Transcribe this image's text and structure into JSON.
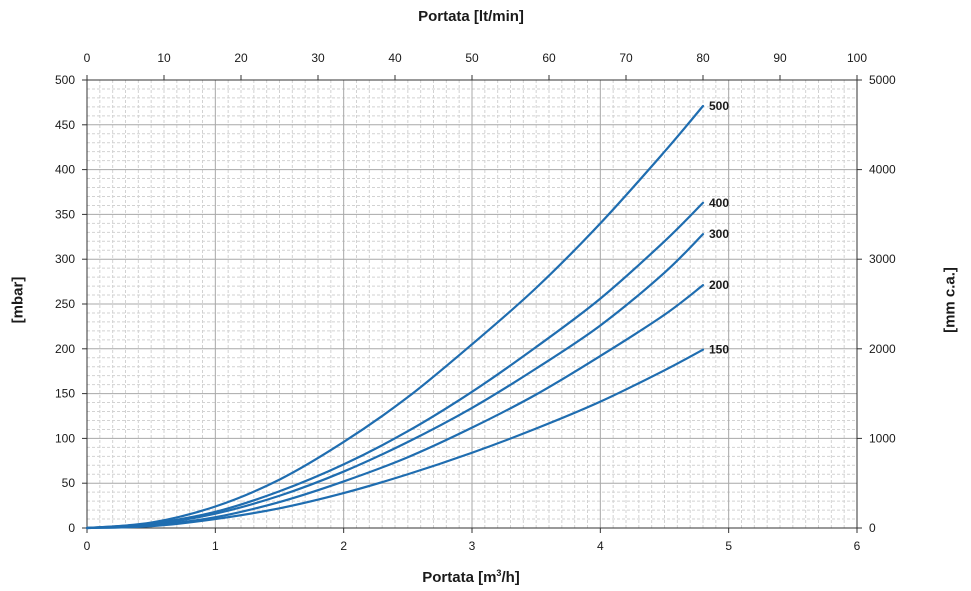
{
  "chart_data": {
    "type": "line",
    "title_top": "Portata [lt/min]",
    "xlabel": "Portata [m³/h]",
    "xlabel_parts": {
      "pre": "Portata [m",
      "sup": "3",
      "post": "/h]"
    },
    "ylabel": "[mbar]",
    "y2label": "[mm c.a.]",
    "xlim": [
      0,
      6
    ],
    "x2lim": [
      0,
      100
    ],
    "ylim": [
      0,
      500
    ],
    "y2lim": [
      0,
      5000
    ],
    "x_ticks": [
      "0",
      "1",
      "2",
      "3",
      "4",
      "5",
      "6"
    ],
    "x2_ticks": [
      "0",
      "10",
      "20",
      "30",
      "40",
      "50",
      "60",
      "70",
      "80",
      "90",
      "100"
    ],
    "y_ticks": [
      "0",
      "50",
      "100",
      "150",
      "200",
      "250",
      "300",
      "350",
      "400",
      "450",
      "500"
    ],
    "y2_ticks": [
      "0",
      "1000",
      "2000",
      "3000",
      "4000",
      "5000"
    ],
    "grid": true,
    "line_color": "#1f6db0",
    "series": [
      {
        "name": "500",
        "x": [
          0,
          0.5,
          1,
          1.5,
          2,
          2.5,
          3,
          3.5,
          4,
          4.5,
          4.8
        ],
        "y": [
          0,
          6,
          24,
          54,
          96,
          146,
          205,
          268,
          340,
          420,
          471
        ]
      },
      {
        "name": "400",
        "x": [
          0,
          0.5,
          1,
          1.5,
          2,
          2.5,
          3,
          3.5,
          4,
          4.5,
          4.8
        ],
        "y": [
          0,
          5,
          18,
          41,
          71,
          108,
          152,
          202,
          256,
          320,
          363
        ]
      },
      {
        "name": "300",
        "x": [
          0,
          0.5,
          1,
          1.5,
          2,
          2.5,
          3,
          3.5,
          4,
          4.5,
          4.8
        ],
        "y": [
          0,
          4,
          16,
          36,
          63,
          96,
          134,
          178,
          226,
          285,
          328
        ]
      },
      {
        "name": "200",
        "x": [
          0,
          0.5,
          1,
          1.5,
          2,
          2.5,
          3,
          3.5,
          4,
          4.5,
          4.8
        ],
        "y": [
          0,
          3,
          12,
          29,
          52,
          79,
          112,
          149,
          192,
          238,
          271
        ]
      },
      {
        "name": "150",
        "x": [
          0,
          0.5,
          1,
          1.5,
          2,
          2.5,
          3,
          3.5,
          4,
          4.5,
          4.8
        ],
        "y": [
          0,
          2,
          10,
          22,
          39,
          60,
          84,
          111,
          141,
          176,
          199
        ]
      }
    ]
  }
}
